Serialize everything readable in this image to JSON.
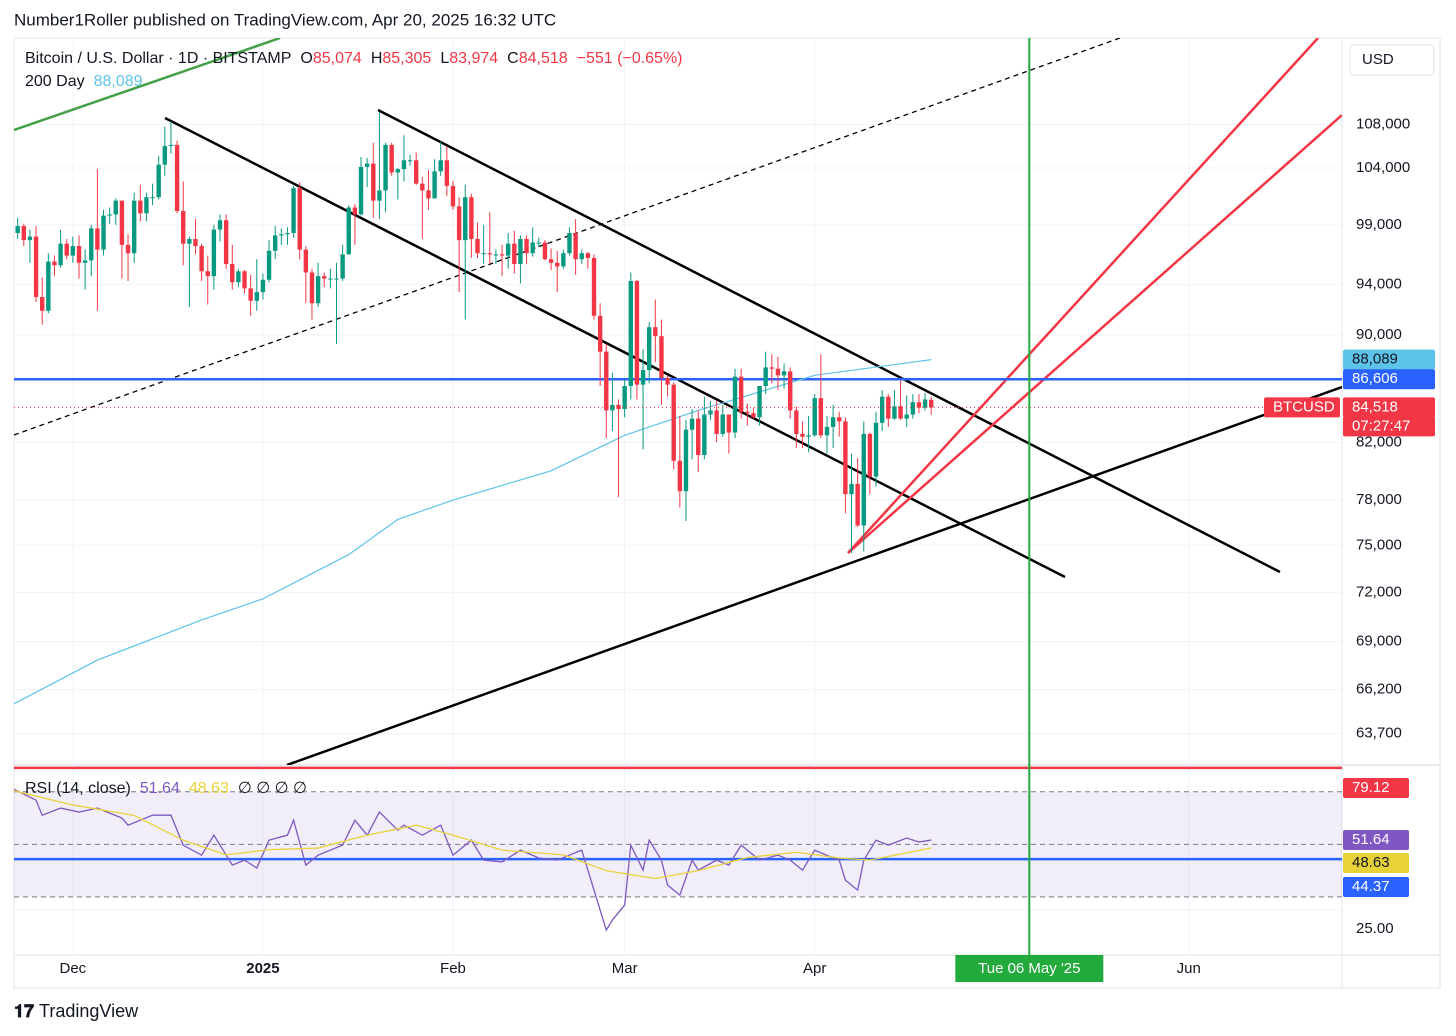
{
  "header": {
    "publisher": "Number1Roller published on TradingView.com, Apr 20, 2025 16:32 UTC"
  },
  "chart_data": {
    "type": "candlestick",
    "symbol": "Bitcoin / U.S. Dollar · 1D · BITSTAMP",
    "legend_values": [
      {
        "key": "O",
        "value": "85,074"
      },
      {
        "key": "H",
        "value": "85,305"
      },
      {
        "key": "L",
        "value": "83,974"
      },
      {
        "key": "C",
        "value": "84,518"
      }
    ],
    "change": "−551 (−0.65%)",
    "currency": "USD",
    "ticker": "BTCUSD",
    "last_label": "84,518",
    "countdown": "07:27:47",
    "up_color": "#089981",
    "down_color": "#f23645",
    "ohlc": [
      [
        97500,
        98800,
        97000,
        98300
      ],
      [
        98300,
        99600,
        97800,
        98900
      ],
      [
        98900,
        99100,
        97200,
        97700
      ],
      [
        97700,
        98600,
        95800,
        98000
      ],
      [
        98000,
        98900,
        92600,
        93000
      ],
      [
        93000,
        94600,
        90800,
        91900
      ],
      [
        91900,
        96600,
        91700,
        95900
      ],
      [
        95900,
        96400,
        94700,
        95600
      ],
      [
        95600,
        98600,
        95400,
        97400
      ],
      [
        97400,
        97800,
        96100,
        96400
      ],
      [
        96400,
        98000,
        95800,
        97200
      ],
      [
        97200,
        98100,
        94500,
        95800
      ],
      [
        95800,
        96900,
        93600,
        96000
      ],
      [
        96000,
        99000,
        94700,
        98700
      ],
      [
        98700,
        103900,
        91900,
        96900
      ],
      [
        96900,
        100300,
        96400,
        99800
      ],
      [
        99800,
        100500,
        99100,
        99900
      ],
      [
        99900,
        101300,
        99000,
        101100
      ],
      [
        101100,
        101100,
        94500,
        97300
      ],
      [
        97300,
        98200,
        94300,
        96600
      ],
      [
        96600,
        101800,
        95800,
        101100
      ],
      [
        101100,
        102500,
        99300,
        100000
      ],
      [
        100000,
        101800,
        99300,
        101400
      ],
      [
        101400,
        102600,
        100700,
        101400
      ],
      [
        101400,
        105100,
        101200,
        104300
      ],
      [
        104300,
        107800,
        103300,
        106000
      ],
      [
        106000,
        108300,
        105300,
        106100
      ],
      [
        106100,
        106500,
        100000,
        100200
      ],
      [
        100200,
        102800,
        95600,
        97400
      ],
      [
        97400,
        98000,
        92200,
        97800
      ],
      [
        97800,
        99500,
        96500,
        97200
      ],
      [
        97200,
        97400,
        94300,
        95100
      ],
      [
        95100,
        96400,
        92400,
        94700
      ],
      [
        94700,
        99000,
        93600,
        98600
      ],
      [
        98600,
        99900,
        97600,
        99400
      ],
      [
        99400,
        99900,
        95300,
        95700
      ],
      [
        95700,
        97300,
        93600,
        94200
      ],
      [
        94200,
        95300,
        93800,
        95100
      ],
      [
        95100,
        95200,
        93300,
        93700
      ],
      [
        93700,
        94800,
        91500,
        92700
      ],
      [
        92700,
        96100,
        91900,
        93400
      ],
      [
        93400,
        94900,
        92800,
        94400
      ],
      [
        94400,
        97700,
        94200,
        96800
      ],
      [
        96800,
        98900,
        96100,
        98100
      ],
      [
        98100,
        98700,
        97300,
        98200
      ],
      [
        98200,
        98800,
        97300,
        98300
      ],
      [
        98300,
        102400,
        97900,
        102200
      ],
      [
        102200,
        102700,
        96100,
        96900
      ],
      [
        96900,
        97200,
        92500,
        95000
      ],
      [
        95000,
        95300,
        91200,
        92500
      ],
      [
        92500,
        95800,
        92200,
        94700
      ],
      [
        94700,
        95000,
        93800,
        94500
      ],
      [
        94500,
        95300,
        93700,
        94500
      ],
      [
        94500,
        95800,
        89300,
        94500
      ],
      [
        94500,
        97300,
        94300,
        96500
      ],
      [
        96500,
        100700,
        96500,
        100500
      ],
      [
        100500,
        100800,
        97300,
        99900
      ],
      [
        99900,
        105000,
        99800,
        104100
      ],
      [
        104100,
        104900,
        102300,
        104400
      ],
      [
        104400,
        106300,
        99600,
        101100
      ],
      [
        101100,
        109200,
        99500,
        102000
      ],
      [
        102000,
        106300,
        100100,
        106100
      ],
      [
        106100,
        106300,
        103300,
        103600
      ],
      [
        103600,
        104000,
        101200,
        103900
      ],
      [
        103900,
        107000,
        102800,
        104700
      ],
      [
        104700,
        105200,
        104200,
        104700
      ],
      [
        104700,
        105400,
        102500,
        102600
      ],
      [
        102600,
        103200,
        97800,
        102000
      ],
      [
        102000,
        103800,
        100300,
        101300
      ],
      [
        101300,
        104800,
        101300,
        103700
      ],
      [
        103700,
        106400,
        103300,
        104700
      ],
      [
        104700,
        106000,
        101500,
        102400
      ],
      [
        102400,
        102800,
        100300,
        100600
      ],
      [
        100600,
        101400,
        93400,
        97700
      ],
      [
        97700,
        102500,
        91200,
        101400
      ],
      [
        101400,
        101700,
        96200,
        97800
      ],
      [
        97800,
        99200,
        96200,
        96600
      ],
      [
        96600,
        99000,
        95700,
        96600
      ],
      [
        96600,
        100100,
        95700,
        96500
      ],
      [
        96500,
        96900,
        95700,
        96500
      ],
      [
        96500,
        97300,
        94700,
        96400
      ],
      [
        96400,
        98300,
        95300,
        97400
      ],
      [
        97400,
        98500,
        94900,
        95700
      ],
      [
        95700,
        98100,
        94100,
        97800
      ],
      [
        97800,
        98100,
        95700,
        96600
      ],
      [
        96600,
        98800,
        96300,
        97500
      ],
      [
        97500,
        97900,
        97100,
        97500
      ],
      [
        97500,
        97700,
        96000,
        96100
      ],
      [
        96100,
        97000,
        95200,
        95800
      ],
      [
        95800,
        96800,
        93400,
        95500
      ],
      [
        95500,
        96900,
        95300,
        96600
      ],
      [
        96600,
        98800,
        96400,
        98300
      ],
      [
        98300,
        99500,
        94800,
        96100
      ],
      [
        96100,
        96900,
        95700,
        96600
      ],
      [
        96600,
        96700,
        95300,
        96200
      ],
      [
        96200,
        96500,
        91200,
        91500
      ],
      [
        91500,
        92500,
        86100,
        88700
      ],
      [
        88700,
        89300,
        82300,
        84300
      ],
      [
        84300,
        87100,
        82800,
        84700
      ],
      [
        84700,
        85100,
        78200,
        84400
      ],
      [
        84400,
        86600,
        83800,
        86100
      ],
      [
        86100,
        95000,
        85100,
        94300
      ],
      [
        94300,
        94400,
        85100,
        86200
      ],
      [
        86200,
        88900,
        81500,
        87300
      ],
      [
        87300,
        91000,
        86300,
        90600
      ],
      [
        90600,
        92800,
        87900,
        89900
      ],
      [
        89900,
        91200,
        84700,
        86700
      ],
      [
        86700,
        86900,
        85300,
        86200
      ],
      [
        86200,
        86400,
        80100,
        80700
      ],
      [
        80700,
        83900,
        77500,
        78600
      ],
      [
        78600,
        83600,
        76600,
        82900
      ],
      [
        82900,
        84400,
        80800,
        83700
      ],
      [
        83700,
        84300,
        79900,
        81100
      ],
      [
        81100,
        85300,
        80800,
        84000
      ],
      [
        84000,
        85000,
        83600,
        84300
      ],
      [
        84300,
        85000,
        82000,
        82600
      ],
      [
        82600,
        84700,
        82400,
        84000
      ],
      [
        84000,
        84000,
        81200,
        82700
      ],
      [
        82700,
        87400,
        82300,
        86800
      ],
      [
        86800,
        87400,
        83700,
        84200
      ],
      [
        84200,
        84800,
        83200,
        84100
      ],
      [
        84100,
        84500,
        83700,
        83800
      ],
      [
        83800,
        86100,
        83200,
        86100
      ],
      [
        86100,
        88700,
        85500,
        87500
      ],
      [
        87500,
        88500,
        86300,
        87400
      ],
      [
        87400,
        88300,
        85800,
        86900
      ],
      [
        86900,
        87800,
        85900,
        87200
      ],
      [
        87200,
        87500,
        83700,
        84300
      ],
      [
        84300,
        84600,
        81600,
        82600
      ],
      [
        82600,
        83500,
        81600,
        82400
      ],
      [
        82400,
        83900,
        81300,
        82500
      ],
      [
        82500,
        85500,
        82400,
        85200
      ],
      [
        85200,
        88500,
        82300,
        82500
      ],
      [
        82500,
        83900,
        81200,
        83100
      ],
      [
        83100,
        84700,
        81600,
        83800
      ],
      [
        83800,
        84200,
        82400,
        83500
      ],
      [
        83500,
        83800,
        77100,
        78400
      ],
      [
        78400,
        81200,
        74500,
        79100
      ],
      [
        79100,
        80900,
        76200,
        76300
      ],
      [
        76300,
        83500,
        74600,
        82600
      ],
      [
        82600,
        82700,
        78400,
        79600
      ],
      [
        79600,
        84200,
        78900,
        83400
      ],
      [
        83400,
        85800,
        82800,
        85300
      ],
      [
        85300,
        85500,
        83100,
        83700
      ],
      [
        83700,
        85800,
        83600,
        84600
      ],
      [
        84600,
        86500,
        83600,
        83700
      ],
      [
        83700,
        85400,
        83100,
        84000
      ],
      [
        84000,
        85500,
        83700,
        84900
      ],
      [
        84900,
        85500,
        84100,
        84500
      ],
      [
        84500,
        85600,
        84300,
        85100
      ],
      [
        85074,
        85305,
        83974,
        84518
      ]
    ],
    "xlim": [
      0.4,
      217
    ],
    "xticks": [
      {
        "value": 10,
        "label": "Dec"
      },
      {
        "value": 41,
        "label": "2025"
      },
      {
        "value": 72,
        "label": "Feb"
      },
      {
        "value": 100,
        "label": "Mar"
      },
      {
        "value": 131,
        "label": "Apr"
      },
      {
        "value": 192,
        "label": "Jun"
      }
    ],
    "ylim": [
      62000,
      116400
    ],
    "log_scale": true,
    "grid": true,
    "yticks": [
      {
        "value": 108000,
        "label": "108,000"
      },
      {
        "value": 104000,
        "label": "104,000"
      },
      {
        "value": 99000,
        "label": "99,000"
      },
      {
        "value": 94000,
        "label": "94,000"
      },
      {
        "value": 90000,
        "label": "90,000"
      },
      {
        "value": 82000,
        "label": "82,000"
      },
      {
        "value": 78000,
        "label": "78,000"
      },
      {
        "value": 75000,
        "label": "75,000"
      },
      {
        "value": 72000,
        "label": "72,000"
      },
      {
        "value": 69000,
        "label": "69,000"
      },
      {
        "value": 66200,
        "label": "66,200"
      },
      {
        "value": 63700,
        "label": "63,700"
      }
    ],
    "overlays": [
      {
        "name": "200 Day",
        "value_label": "88,089",
        "color": "#5ec3e8",
        "x": [
          0,
          14,
          31,
          41,
          55,
          63,
          72,
          88,
          100,
          112,
          131,
          150
        ],
        "values": [
          65300,
          67900,
          70300,
          71600,
          74400,
          76700,
          78000,
          80000,
          82500,
          84300,
          86900,
          88089
        ]
      }
    ],
    "levels": [
      {
        "value": 86606,
        "label": "86,606",
        "color": "#2962ff"
      }
    ],
    "marker": {
      "x": 166,
      "label": "Tue 06 May '25",
      "color": "#22ab3c"
    },
    "rsi": {
      "type": "line",
      "title": "RSI (14, close)",
      "placeholders": "∅ ∅ ∅ ∅",
      "ylim": [
        7.9,
        80.2
      ],
      "yticks": [
        {
          "value": 25,
          "label": "25.00"
        }
      ],
      "band": [
        30,
        70
      ],
      "midline": 50,
      "band_color": "#7e57c2",
      "series": [
        {
          "color": "#7e57c2",
          "value_label": "51.64",
          "x": [
            0,
            4,
            5,
            8,
            11,
            14,
            18,
            19,
            23,
            26,
            28,
            31,
            33,
            36,
            38,
            40,
            42,
            45,
            46,
            48,
            50,
            54,
            56,
            58,
            60,
            63,
            64,
            67,
            70,
            72,
            75,
            77,
            80,
            83,
            86,
            89,
            93,
            94,
            96,
            97,
            98,
            100,
            101,
            103,
            104,
            106,
            107,
            109,
            111,
            112,
            115,
            117,
            119,
            122,
            125,
            127,
            129,
            131,
            134,
            135,
            136,
            138,
            139,
            141,
            143,
            146,
            148,
            150
          ],
          "values": [
            71.4,
            66.8,
            61.1,
            63.8,
            62.3,
            63.8,
            60,
            57.3,
            61.1,
            61.1,
            49.7,
            45.9,
            53.5,
            42.1,
            44,
            41,
            51.6,
            53.5,
            59.2,
            42.1,
            45.9,
            49.7,
            59.2,
            53.5,
            62.3,
            55.4,
            57.3,
            53.5,
            57.3,
            45.9,
            51.6,
            44,
            43.3,
            47.8,
            44.8,
            44,
            47.8,
            40.2,
            25,
            17.4,
            21.2,
            26.9,
            49.7,
            40.2,
            51.6,
            44,
            34.5,
            30.7,
            44,
            40.2,
            44,
            42.1,
            49.7,
            44,
            45.9,
            44,
            40.2,
            47.8,
            44.8,
            44,
            36.4,
            32.6,
            44,
            51.6,
            49.7,
            52.4,
            50.9,
            51.64
          ]
        },
        {
          "color": "#e8d23a",
          "value_label": "48.63",
          "x": [
            0,
            10,
            20,
            28,
            35,
            42,
            50,
            58,
            66,
            72,
            80,
            90,
            97,
            105,
            112,
            120,
            128,
            135,
            140,
            150
          ],
          "values": [
            70.6,
            65,
            61,
            51.6,
            46,
            48,
            48.6,
            53.5,
            57.3,
            53.5,
            47.8,
            46,
            40,
            37,
            40,
            45,
            47,
            44.8,
            44,
            48.63
          ]
        }
      ],
      "levels": [
        {
          "value": 79.12,
          "label": "79.12",
          "color": "#f23645"
        },
        {
          "value": 44.37,
          "label": "44.37",
          "color": "#2962ff"
        }
      ]
    }
  },
  "footer": {
    "brand": "TradingView"
  }
}
